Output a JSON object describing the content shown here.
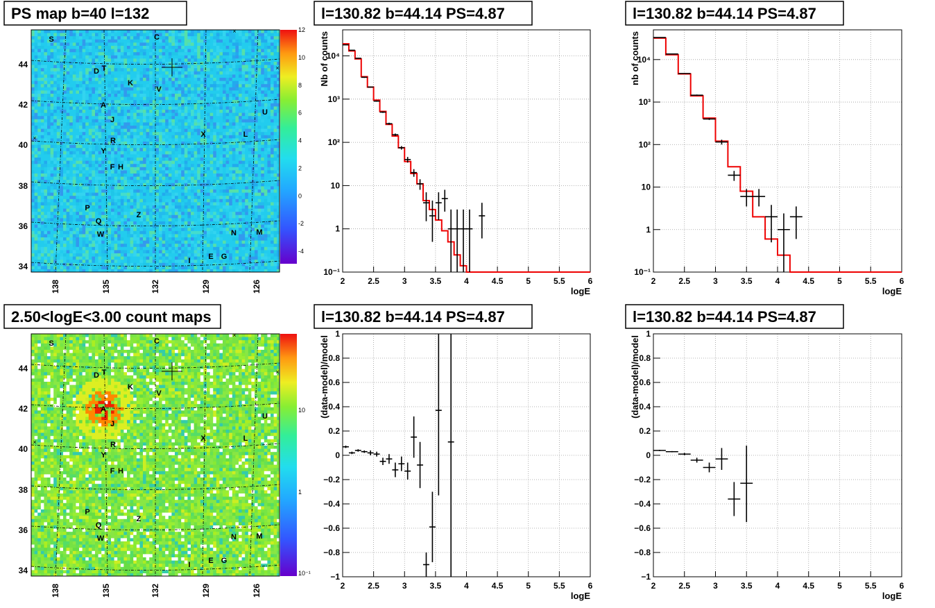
{
  "map_top": {
    "title": "PS map b=40 l=132",
    "lat_ticks": [
      "44",
      "42",
      "40",
      "38",
      "36",
      "34"
    ],
    "lon_ticks": [
      "138",
      "135",
      "132",
      "129",
      "126"
    ],
    "colorbar_ticks": [
      "12",
      "10",
      "8",
      "6",
      "4",
      "2",
      "0",
      "-2",
      "-4"
    ],
    "sources": [
      "S",
      "C",
      "D",
      "T",
      "K",
      "V",
      "A",
      "U",
      "J",
      "X",
      "L",
      "R",
      "Y",
      "F",
      "H",
      "P",
      "Z",
      "Q",
      "W",
      "N",
      "M",
      "I",
      "E",
      "G"
    ]
  },
  "map_bottom": {
    "title": "2.50<logE<3.00 count maps",
    "lat_ticks": [
      "44",
      "42",
      "40",
      "38",
      "36",
      "34"
    ],
    "lon_ticks": [
      "138",
      "135",
      "132",
      "129",
      "126"
    ],
    "colorbar_ticks": [
      "10",
      "1",
      "10⁻¹"
    ],
    "sources": [
      "S",
      "C",
      "D",
      "T",
      "K",
      "V",
      "A",
      "U",
      "J",
      "X",
      "L",
      "R",
      "Y",
      "F",
      "H",
      "P",
      "Z",
      "Q",
      "W",
      "N",
      "M",
      "I",
      "E",
      "G"
    ]
  },
  "colors": {
    "model_line": "#ee0000",
    "data": "#000000",
    "grid": "#9a9a9a"
  },
  "chart_data": [
    {
      "id": "spectrum_left",
      "type": "line",
      "title": "l=130.82 b=44.14 PS=4.87",
      "xlabel": "logE",
      "ylabel": "Nb of counts",
      "xlim": [
        2,
        6
      ],
      "ylim": [
        0.1,
        40000
      ],
      "yscale": "log",
      "grid": true,
      "x_ticks": [
        "2",
        "2.5",
        "3",
        "3.5",
        "4",
        "4.5",
        "5",
        "5.5",
        "6"
      ],
      "y_ticks": [
        "10⁻¹",
        "1",
        "10",
        "10²",
        "10³",
        "10⁴"
      ],
      "series": [
        {
          "kind": "model_step",
          "edges": [
            2.0,
            2.1,
            2.2,
            2.3,
            2.4,
            2.5,
            2.6,
            2.7,
            2.8,
            2.9,
            3.0,
            3.1,
            3.2,
            3.3,
            3.4,
            3.5,
            3.6,
            3.7,
            3.8,
            3.9,
            4.0,
            4.1,
            4.2,
            4.3,
            4.4,
            4.5,
            4.6,
            4.7,
            4.8,
            4.9,
            5.0,
            5.1,
            5.2,
            5.3,
            5.4,
            5.5,
            5.6,
            5.7,
            5.8,
            5.9,
            6.0
          ],
          "values": [
            19000,
            13000,
            8500,
            3300,
            1900,
            950,
            520,
            260,
            140,
            75,
            36,
            19,
            11,
            4.5,
            2.8,
            1.6,
            0.9,
            0.5,
            0.25,
            0.14,
            0.1,
            0.1,
            0.1,
            0.1,
            0.1,
            0.1,
            0.1,
            0.1,
            0.1,
            0.1,
            0.1,
            0.1,
            0.1,
            0.1,
            0.1,
            0.1,
            0.1,
            0.1,
            0.1,
            0.1
          ]
        },
        {
          "kind": "data_points",
          "x": [
            2.05,
            2.15,
            2.25,
            2.35,
            2.45,
            2.55,
            2.65,
            2.75,
            2.85,
            2.95,
            3.05,
            3.15,
            3.25,
            3.35,
            3.45,
            3.55,
            3.65,
            3.75,
            3.85,
            3.95,
            4.05,
            4.25
          ],
          "y": [
            18000,
            13500,
            8800,
            3200,
            1900,
            900,
            500,
            270,
            150,
            75,
            40,
            20,
            11,
            4,
            2,
            4,
            5,
            1,
            1,
            1,
            1,
            2
          ],
          "ylo": [
            17800,
            13300,
            8600,
            3100,
            1850,
            870,
            480,
            255,
            140,
            68,
            34,
            16,
            8,
            1.5,
            0.5,
            1.6,
            2.5,
            0.1,
            0.1,
            0.1,
            0.1,
            0.6
          ],
          "yhi": [
            18200,
            13700,
            9000,
            3300,
            1950,
            930,
            520,
            285,
            160,
            82,
            46,
            24,
            14,
            7,
            4.5,
            7,
            8,
            2.8,
            2.8,
            2.8,
            2.8,
            4
          ]
        }
      ]
    },
    {
      "id": "spectrum_right",
      "type": "line",
      "title": "l=130.82 b=44.14 PS=4.87",
      "xlabel": "logE",
      "ylabel": "nb of counts",
      "xlim": [
        2,
        6
      ],
      "ylim": [
        0.1,
        50000
      ],
      "yscale": "log",
      "grid": true,
      "x_ticks": [
        "2",
        "2.5",
        "3",
        "3.5",
        "4",
        "4.5",
        "5",
        "5.5",
        "6"
      ],
      "y_ticks": [
        "10⁻¹",
        "1",
        "10",
        "10²",
        "10³",
        "10⁴"
      ],
      "series": [
        {
          "kind": "model_step",
          "edges": [
            2.0,
            2.2,
            2.4,
            2.6,
            2.8,
            3.0,
            3.2,
            3.4,
            3.6,
            3.8,
            4.0,
            4.2,
            4.4,
            4.6,
            4.8,
            5.0,
            5.2,
            5.4,
            5.6,
            5.8,
            6.0
          ],
          "values": [
            32000,
            13000,
            4600,
            1400,
            420,
            120,
            30,
            8,
            2,
            0.6,
            0.25,
            0.1,
            0.1,
            0.1,
            0.1,
            0.1,
            0.1,
            0.1,
            0.1,
            0.1
          ]
        },
        {
          "kind": "data_points",
          "x": [
            2.1,
            2.3,
            2.5,
            2.7,
            2.9,
            3.1,
            3.3,
            3.5,
            3.7,
            3.9,
            4.1,
            4.3
          ],
          "y": [
            33000,
            13500,
            4700,
            1450,
            400,
            115,
            19,
            6,
            6,
            2,
            1,
            2
          ],
          "ylo": [
            32500,
            13200,
            4600,
            1400,
            380,
            100,
            14,
            3.5,
            3.5,
            0.5,
            0.1,
            0.6
          ],
          "yhi": [
            33500,
            13800,
            4800,
            1500,
            420,
            130,
            24,
            9,
            9,
            3.8,
            2.4,
            3.5
          ]
        }
      ]
    },
    {
      "id": "residual_left",
      "type": "scatter",
      "title": "l=130.82 b=44.14 PS=4.87",
      "xlabel": "logE",
      "ylabel": "(data-model)/model",
      "xlim": [
        2,
        6
      ],
      "ylim": [
        -1,
        1
      ],
      "grid": true,
      "x_ticks": [
        "2",
        "2.5",
        "3",
        "3.5",
        "4",
        "4.5",
        "5",
        "5.5",
        "6"
      ],
      "y_ticks": [
        "1",
        "0.8",
        "0.6",
        "0.4",
        "0.2",
        "0",
        "−0.2",
        "−0.4",
        "−0.6",
        "−0.8",
        "−1"
      ],
      "series": [
        {
          "kind": "data_points",
          "x": [
            2.05,
            2.15,
            2.25,
            2.35,
            2.45,
            2.55,
            2.65,
            2.75,
            2.85,
            2.95,
            3.05,
            3.15,
            3.25,
            3.35,
            3.45,
            3.55,
            3.75
          ],
          "y": [
            0.07,
            0.02,
            0.04,
            0.03,
            0.02,
            0.01,
            -0.05,
            -0.03,
            -0.12,
            -0.07,
            -0.13,
            0.15,
            -0.08,
            -0.9,
            -0.59,
            0.37,
            0.11
          ],
          "ylo": [
            0.06,
            0.01,
            0.03,
            0.02,
            0.0,
            -0.01,
            -0.08,
            -0.07,
            -0.18,
            -0.13,
            -0.2,
            -0.02,
            -0.27,
            -1.0,
            -0.88,
            -0.33,
            -1.0
          ],
          "yhi": [
            0.08,
            0.03,
            0.05,
            0.04,
            0.04,
            0.03,
            -0.02,
            0.01,
            -0.06,
            -0.01,
            -0.06,
            0.32,
            0.11,
            -0.8,
            -0.3,
            1.0,
            1.0
          ]
        }
      ]
    },
    {
      "id": "residual_right",
      "type": "scatter",
      "title": "l=130.82 b=44.14 PS=4.87",
      "xlabel": "logE",
      "ylabel": "(data-model)/model",
      "xlim": [
        2,
        6
      ],
      "ylim": [
        -1,
        1
      ],
      "grid": true,
      "x_ticks": [
        "2",
        "2.5",
        "3",
        "3.5",
        "4",
        "4.5",
        "5",
        "5.5",
        "6"
      ],
      "y_ticks": [
        "1",
        "0.8",
        "0.6",
        "0.4",
        "0.2",
        "0",
        "−0.2",
        "−0.4",
        "−0.6",
        "−0.8",
        "−1"
      ],
      "series": [
        {
          "kind": "data_points",
          "x": [
            2.1,
            2.3,
            2.5,
            2.7,
            2.9,
            3.1,
            3.3,
            3.5
          ],
          "y": [
            0.04,
            0.03,
            0.01,
            -0.04,
            -0.1,
            -0.03,
            -0.36,
            -0.23
          ],
          "ylo": [
            0.035,
            0.025,
            0.0,
            -0.06,
            -0.14,
            -0.12,
            -0.5,
            -0.55
          ],
          "yhi": [
            0.045,
            0.035,
            0.02,
            -0.02,
            -0.06,
            0.06,
            -0.22,
            0.08
          ]
        }
      ]
    }
  ]
}
